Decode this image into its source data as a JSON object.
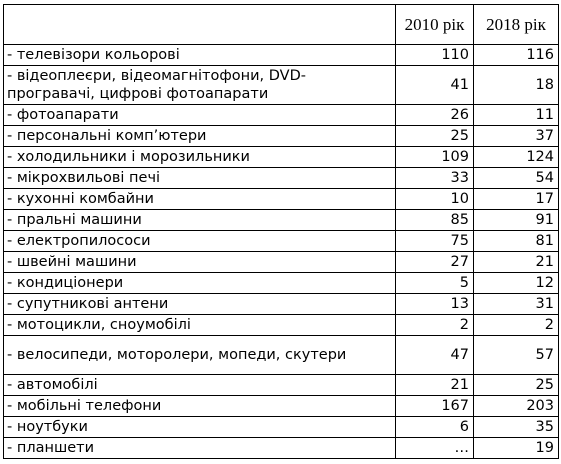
{
  "header": {
    "col_label": "",
    "col_2010": "2010 рік",
    "col_2018": "2018 рік"
  },
  "rows": [
    {
      "label": "- телевізори кольорові",
      "v2010": "110",
      "v2018": "116"
    },
    {
      "label": "- відеоплеєри, відеомагнітофони, DVD-програвачі, цифрові фотоапарати",
      "v2010": "41",
      "v2018": "18"
    },
    {
      "label": "- фотоапарати",
      "v2010": "26",
      "v2018": "11"
    },
    {
      "label": "- персональні комп’ютери",
      "v2010": "25",
      "v2018": "37"
    },
    {
      "label": "- холодильники і морозильники",
      "v2010": "109",
      "v2018": "124"
    },
    {
      "label": "- мікрохвильові печі",
      "v2010": "33",
      "v2018": "54"
    },
    {
      "label": "- кухонні комбайни",
      "v2010": "10",
      "v2018": "17"
    },
    {
      "label": "- пральні машини",
      "v2010": "85",
      "v2018": "91"
    },
    {
      "label": "- електропилососи",
      "v2010": "75",
      "v2018": "81"
    },
    {
      "label": "- швейні машини",
      "v2010": "27",
      "v2018": "21"
    },
    {
      "label": "- кондиціонери",
      "v2010": "5",
      "v2018": "12"
    },
    {
      "label": "- супутникові антени",
      "v2010": "13",
      "v2018": "31"
    },
    {
      "label": "- мотоцикли, сноумобілі",
      "v2010": "2",
      "v2018": "2"
    },
    {
      "label": "- велосипеди, моторолери, мопеди, скутери",
      "v2010": "47",
      "v2018": "57"
    },
    {
      "label": "- автомобілі",
      "v2010": "21",
      "v2018": "25"
    },
    {
      "label": "- мобільні телефони",
      "v2010": "167",
      "v2018": "203"
    },
    {
      "label": "- ноутбуки",
      "v2010": "6",
      "v2018": "35"
    },
    {
      "label": "- планшети",
      "v2010": "…",
      "v2018": "19"
    }
  ]
}
